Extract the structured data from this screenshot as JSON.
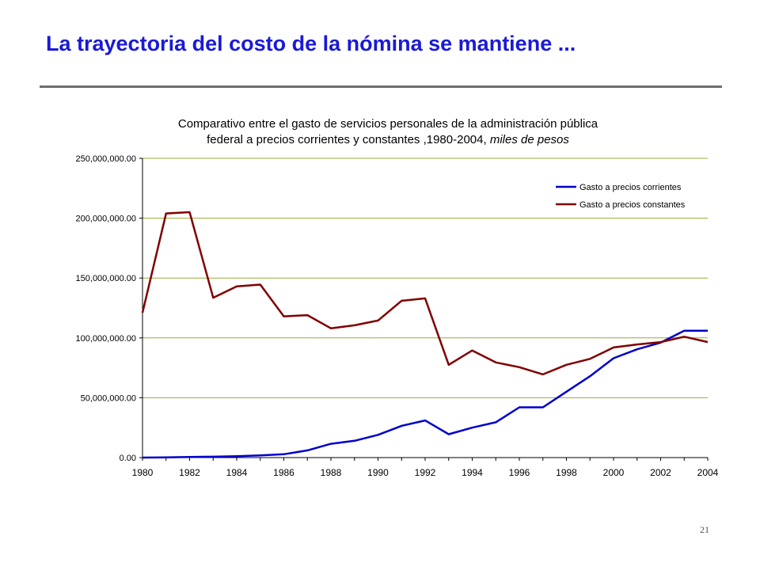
{
  "slide": {
    "title": "La trayectoria del costo de la nómina se mantiene ...",
    "page_number": "21"
  },
  "chart_data": {
    "type": "line",
    "title_line1": "Comparativo entre el gasto de servicios personales de la administración pública",
    "title_line2": "federal a precios corrientes y constantes ,1980-2004,",
    "title_line2_italic": "miles de pesos",
    "x": [
      1980,
      1981,
      1982,
      1983,
      1984,
      1985,
      1986,
      1987,
      1988,
      1989,
      1990,
      1991,
      1992,
      1993,
      1994,
      1995,
      1996,
      1997,
      1998,
      1999,
      2000,
      2001,
      2002,
      2003,
      2004
    ],
    "x_tick_labels": [
      "1980",
      "1982",
      "1984",
      "1986",
      "1988",
      "1990",
      "1992",
      "1994",
      "1996",
      "1998",
      "2000",
      "2002",
      "2004"
    ],
    "y_tick_labels": [
      "0.00",
      "50,000,000.00",
      "100,000,000.00",
      "150,000,000.00",
      "200,000,000.00",
      "250,000,000.00"
    ],
    "ylim": [
      0,
      250000000
    ],
    "grid": true,
    "legend_position": "top-right",
    "series": [
      {
        "name": "Gasto a precios corrientes",
        "color": "#0000cc",
        "values": [
          0,
          200000,
          500000,
          700000,
          1100000,
          1800000,
          2800000,
          6000000,
          11500000,
          14000000,
          19000000,
          26500000,
          31000000,
          19500000,
          25000000,
          29500000,
          42000000,
          42000000,
          55000000,
          68000000,
          83000000,
          90500000,
          96000000,
          106000000,
          106000000
        ]
      },
      {
        "name": "Gasto a precios constantes",
        "color": "#800000",
        "values": [
          121000000,
          204000000,
          205000000,
          133500000,
          143000000,
          144500000,
          118000000,
          119000000,
          108000000,
          110500000,
          114500000,
          131000000,
          133000000,
          77500000,
          89500000,
          79500000,
          75500000,
          69500000,
          77500000,
          82500000,
          92000000,
          94500000,
          96500000,
          101000000,
          96500000
        ]
      }
    ]
  }
}
